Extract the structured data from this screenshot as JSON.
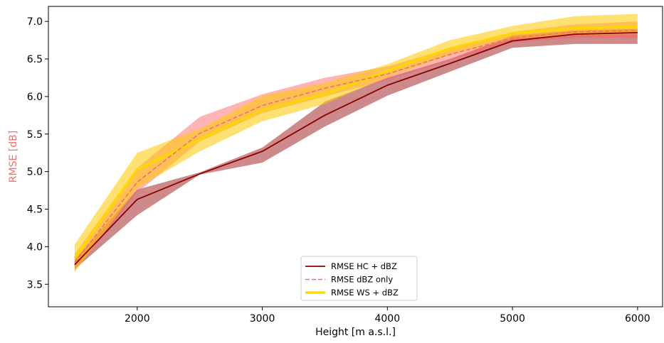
{
  "chart_data": {
    "type": "line",
    "xlabel": "Height [m a.s.l.]",
    "ylabel": "RMSE [dB]",
    "xlim": [
      1290,
      6200
    ],
    "ylim": [
      3.2,
      7.2
    ],
    "xticks": [
      2000,
      3000,
      4000,
      5000,
      6000
    ],
    "yticks": [
      3.5,
      4.0,
      4.5,
      5.0,
      5.5,
      6.0,
      6.5,
      7.0
    ],
    "x": [
      1500,
      2000,
      2500,
      3000,
      3500,
      4000,
      4500,
      5000,
      5500,
      6000
    ],
    "legend_position": "bottom-center",
    "grid": false,
    "series": [
      {
        "name": "RMSE HC + dBZ",
        "color": "#8b0000",
        "band_color": "#a52a2a",
        "line_style": "solid",
        "values": [
          3.76,
          4.63,
          4.97,
          5.27,
          5.75,
          6.15,
          6.44,
          6.74,
          6.83,
          6.85
        ],
        "lower": [
          3.7,
          4.42,
          4.96,
          5.12,
          5.6,
          6.01,
          6.33,
          6.65,
          6.7,
          6.7
        ],
        "upper": [
          3.83,
          4.76,
          4.99,
          5.32,
          5.93,
          6.25,
          6.5,
          6.81,
          6.88,
          6.9
        ]
      },
      {
        "name": "RMSE dBZ only",
        "color": "#f07070",
        "band_color": "#ff5a5a",
        "line_style": "dashed",
        "values": [
          3.79,
          4.86,
          5.51,
          5.88,
          6.11,
          6.3,
          6.56,
          6.78,
          6.86,
          6.88
        ],
        "lower": [
          3.68,
          4.72,
          5.4,
          5.78,
          6.0,
          6.22,
          6.48,
          6.72,
          6.78,
          6.78
        ],
        "upper": [
          3.9,
          5.05,
          5.73,
          6.03,
          6.25,
          6.4,
          6.64,
          6.86,
          6.96,
          7.0
        ]
      },
      {
        "name": "RMSE WS + dBZ",
        "color": "#ffd700",
        "band_color": "#ffc800",
        "line_style": "solid",
        "values": [
          3.85,
          5.03,
          5.43,
          5.82,
          6.03,
          6.34,
          6.64,
          6.84,
          6.91,
          6.93
        ],
        "lower": [
          3.66,
          4.78,
          5.27,
          5.67,
          5.9,
          6.26,
          6.55,
          6.77,
          6.82,
          6.83
        ],
        "upper": [
          4.03,
          5.25,
          5.57,
          6.01,
          6.18,
          6.43,
          6.75,
          6.94,
          7.07,
          7.1
        ]
      }
    ]
  }
}
